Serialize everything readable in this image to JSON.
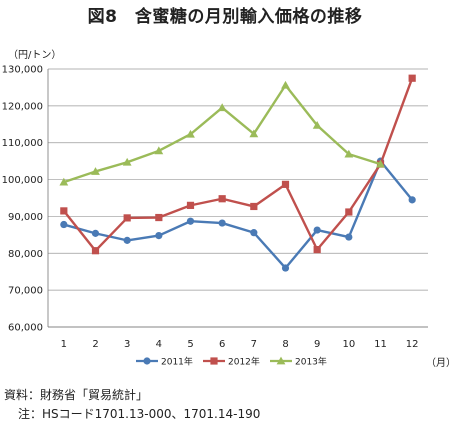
{
  "title": "図8　含蜜糖の月別輸入価格の推移",
  "notes": {
    "source": "資料：財務省「貿易統計」",
    "note": "注：HSコード1701.13-000、1701.14-190"
  },
  "chart_data": {
    "type": "line",
    "title": "図8　含蜜糖の月別輸入価格の推移",
    "ylabel": "（円/トン）",
    "xlabel": "（月）",
    "x": [
      1,
      2,
      3,
      4,
      5,
      6,
      7,
      8,
      9,
      10,
      11,
      12
    ],
    "ylim": [
      60000,
      130000
    ],
    "yticks": [
      60000,
      70000,
      80000,
      90000,
      100000,
      110000,
      120000,
      130000
    ],
    "ytick_labels": [
      "60,000",
      "70,000",
      "80,000",
      "90,000",
      "100,000",
      "110,000",
      "120,000",
      "130,000"
    ],
    "grid": true,
    "legend": "bottom",
    "series": [
      {
        "name": "2011年",
        "color": "#4a7ab5",
        "marker": "circle",
        "values": [
          87800,
          85400,
          83500,
          84800,
          88700,
          88200,
          85600,
          76000,
          86300,
          84400,
          105000,
          94500
        ]
      },
      {
        "name": "2012年",
        "color": "#c0504d",
        "marker": "square",
        "values": [
          91500,
          80700,
          89600,
          89700,
          93000,
          94800,
          92700,
          98700,
          81000,
          91200,
          104200,
          127500
        ]
      },
      {
        "name": "2013年",
        "color": "#9bbb59",
        "marker": "triangle",
        "values": [
          99300,
          102200,
          104700,
          107800,
          112300,
          119500,
          112400,
          125600,
          114700,
          106900,
          104200,
          null
        ]
      }
    ]
  }
}
